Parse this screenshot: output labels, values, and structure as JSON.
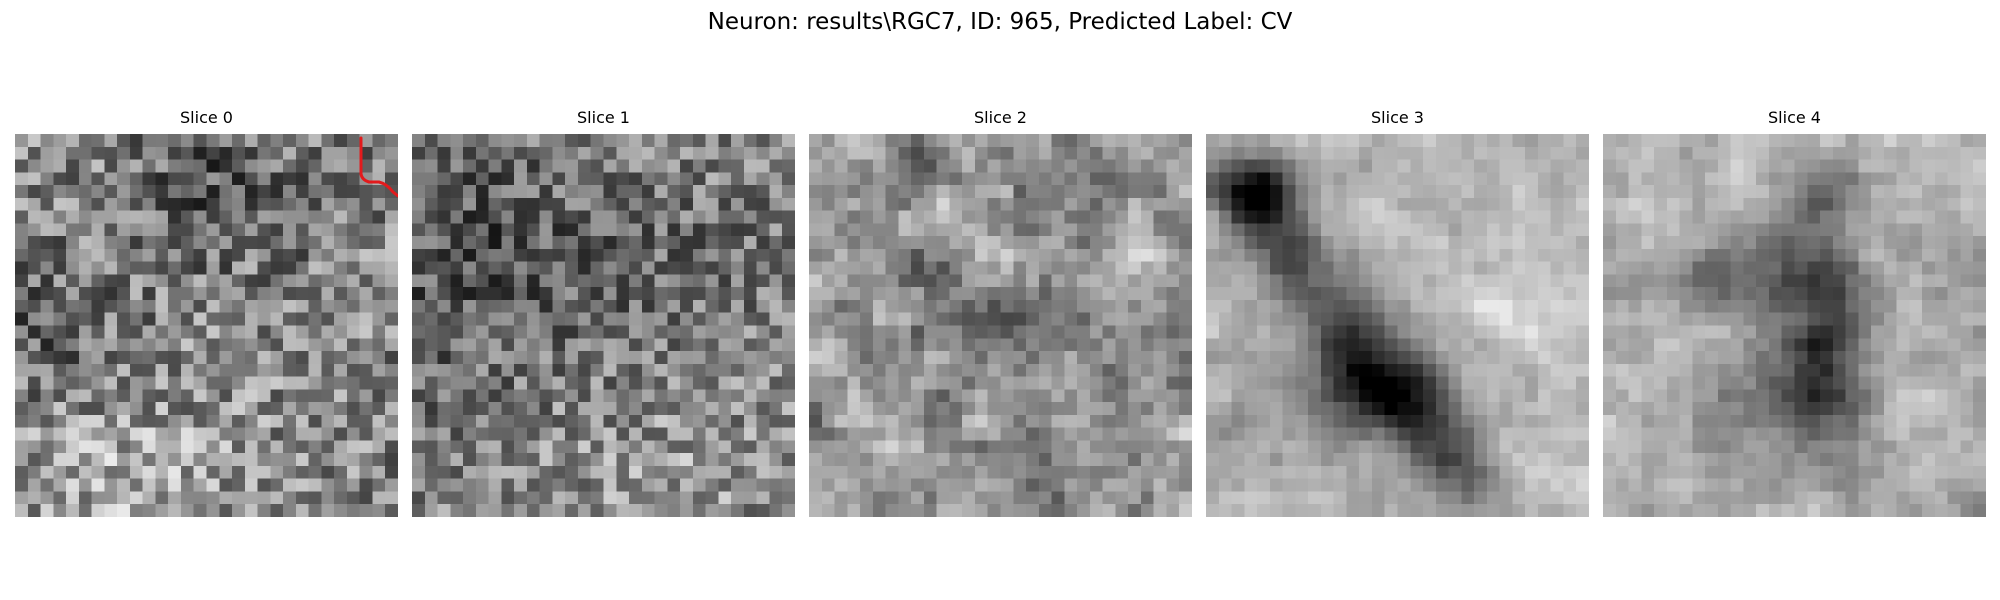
{
  "figure": {
    "title": "Neuron: results\\RGC7, ID: 965, Predicted Label: CV"
  },
  "panels": [
    {
      "title": "Slice 0",
      "pattern": "noise-fine-dark-top",
      "has_trace": true,
      "trace_color": "#e31a1c"
    },
    {
      "title": "Slice 1",
      "pattern": "noise-fine-dark-left",
      "has_trace": false
    },
    {
      "title": "Slice 2",
      "pattern": "noise-mottled-blobs",
      "has_trace": false
    },
    {
      "title": "Slice 3",
      "pattern": "smooth-diagonal-dark-blob",
      "has_trace": false
    },
    {
      "title": "Slice 4",
      "pattern": "smooth-vertical-dark-band",
      "has_trace": false
    }
  ],
  "colors": {
    "background": "#ffffff",
    "colormap": "gray",
    "trace": "#e31a1c"
  }
}
